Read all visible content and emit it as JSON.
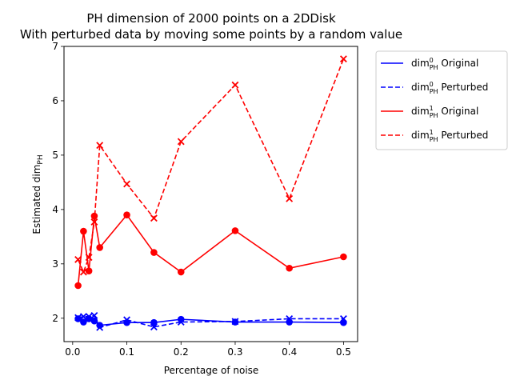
{
  "chart_data": {
    "type": "line",
    "title_line1": "PH dimension of 2000 points on a 2DDisk",
    "title_line2": "With perturbed data by moving some points by a random value",
    "xlabel": "Percentage of noise",
    "ylabel_main": "Estimated dim",
    "ylabel_sub": "PH",
    "xlim": [
      -0.016,
      0.526
    ],
    "ylim": [
      1.57,
      7.0
    ],
    "xticks": [
      "0.0",
      "0.1",
      "0.2",
      "0.3",
      "0.4",
      "0.5"
    ],
    "xtick_values": [
      0.0,
      0.1,
      0.2,
      0.3,
      0.4,
      0.5
    ],
    "yticks": [
      "2",
      "3",
      "4",
      "5",
      "6",
      "7"
    ],
    "ytick_values": [
      2,
      3,
      4,
      5,
      6,
      7
    ],
    "x": [
      0.01,
      0.02,
      0.03,
      0.04,
      0.05,
      0.1,
      0.15,
      0.2,
      0.3,
      0.4,
      0.5
    ],
    "series": [
      {
        "name": "dim0PH Original",
        "legend_main": "dim",
        "legend_sup": "0",
        "legend_sub": "PH",
        "legend_suffix": " Original",
        "color": "#0000ff",
        "dashed": false,
        "marker": "circle",
        "values": [
          1.99,
          1.93,
          1.99,
          1.95,
          1.87,
          1.92,
          1.92,
          1.98,
          1.93,
          1.93,
          1.92
        ]
      },
      {
        "name": "dim0PH Perturbed",
        "legend_main": "dim",
        "legend_sup": "0",
        "legend_sub": "PH",
        "legend_suffix": " Perturbed",
        "color": "#0000ff",
        "dashed": true,
        "marker": "x",
        "values": [
          2.01,
          2.03,
          2.03,
          2.05,
          1.83,
          1.97,
          1.84,
          1.93,
          1.94,
          1.99,
          1.99
        ]
      },
      {
        "name": "dim1PH Original",
        "legend_main": "dim",
        "legend_sup": "1",
        "legend_sub": "PH",
        "legend_suffix": " Original",
        "color": "#ff0000",
        "dashed": false,
        "marker": "circle",
        "values": [
          2.6,
          3.6,
          2.87,
          3.88,
          3.3,
          3.9,
          3.21,
          2.85,
          3.61,
          2.92,
          3.13
        ]
      },
      {
        "name": "dim1PH Perturbed",
        "legend_main": "dim",
        "legend_sup": "1",
        "legend_sub": "PH",
        "legend_suffix": " Perturbed",
        "color": "#ff0000",
        "dashed": true,
        "marker": "x",
        "values": [
          3.08,
          2.85,
          3.12,
          3.77,
          5.18,
          4.47,
          3.84,
          5.25,
          6.29,
          4.2,
          6.77
        ]
      }
    ],
    "legend_position": "outside-right-top",
    "grid": false
  }
}
